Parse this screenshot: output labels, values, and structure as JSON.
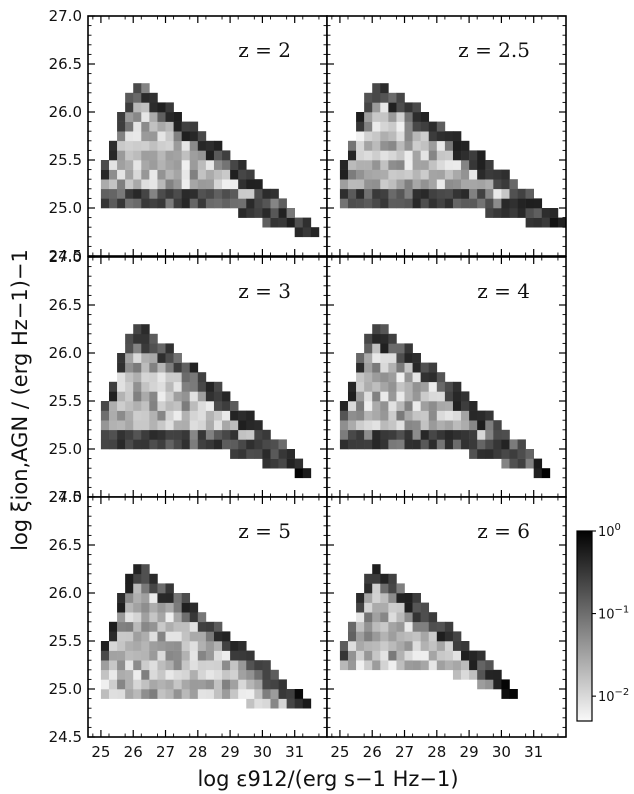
{
  "chart_data": {
    "type": "heatmap",
    "colormap": "Greys",
    "colorscale": "log",
    "xlabel": "log ε912/(erg s−1 Hz−1)",
    "ylabel": "log ξion,AGN / (erg Hz−1)−1",
    "xlim": [
      24.6,
      32.0
    ],
    "ylim": [
      24.5,
      27.0
    ],
    "xticks": [
      "25",
      "26",
      "27",
      "28",
      "29",
      "30",
      "31"
    ],
    "yticks": [
      "24.5",
      "25.0",
      "25.5",
      "26.0",
      "26.5",
      "27.0"
    ],
    "bin_x": 0.25,
    "bin_y": 0.1,
    "panels": [
      {
        "label": "z = 2",
        "upper": [
          26.5,
          24.7
        ],
        "lower": [
          25.05,
          24.7
        ],
        "x_min": 25.0,
        "x_max": 31.75
      },
      {
        "label": "z = 2.5",
        "upper": [
          26.5,
          24.8
        ],
        "lower": [
          25.05,
          24.8
        ],
        "x_min": 25.0,
        "x_max": 32.0
      },
      {
        "label": "z = 3",
        "upper": [
          26.5,
          24.75
        ],
        "lower": [
          25.05,
          24.75
        ],
        "x_min": 25.0,
        "x_max": 31.5
      },
      {
        "label": "z = 4",
        "upper": [
          26.5,
          24.75
        ],
        "lower": [
          25.05,
          24.75
        ],
        "x_min": 25.0,
        "x_max": 31.5
      },
      {
        "label": "z = 5",
        "upper": [
          26.5,
          24.8
        ],
        "lower": [
          24.95,
          24.8
        ],
        "x_min": 25.0,
        "x_max": 31.5
      },
      {
        "label": "z = 6",
        "upper": [
          26.5,
          24.95
        ],
        "lower": [
          25.25,
          24.95
        ],
        "x_min": 25.0,
        "x_max": 30.5
      }
    ],
    "colorbar": {
      "ticks": [
        {
          "base": "10",
          "exp": "0",
          "value": 1.0
        },
        {
          "base": "10",
          "exp": "−1",
          "value": 0.1
        },
        {
          "base": "10",
          "exp": "−2",
          "value": 0.01
        }
      ],
      "range": [
        0.005,
        1.0
      ]
    }
  }
}
